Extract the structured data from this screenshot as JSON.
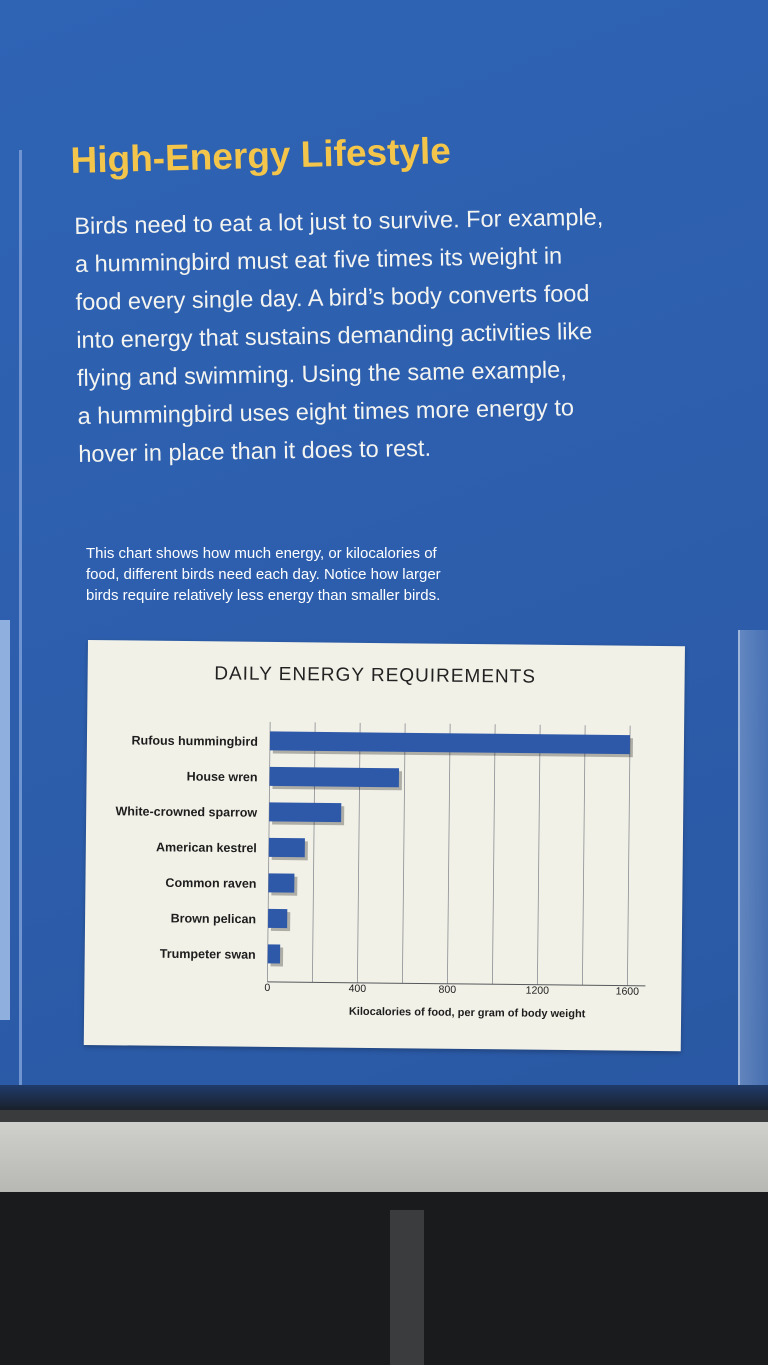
{
  "heading": "High-Energy Lifestyle",
  "intro_lines": [
    "Birds need to eat a lot just to survive. For example,",
    "a hummingbird must eat five times its weight in",
    "food every single day. A bird’s body converts food",
    "into energy that sustains demanding activities like",
    "flying and swimming. Using the same example,",
    "a hummingbird uses eight times more energy to",
    "hover in place than it does to rest."
  ],
  "caption_lines": [
    "This chart shows how much energy, or kilocalories of",
    "food, different birds need each day. Notice how larger",
    "birds require relatively less energy than smaller birds."
  ],
  "colors": {
    "panel": "#2d5fae",
    "heading": "#f3c54a",
    "bar": "#2e58a8",
    "card": "#f2f1e8"
  },
  "chart_data": {
    "type": "bar",
    "orientation": "horizontal",
    "title": "DAILY ENERGY REQUIREMENTS",
    "xlabel": "Kilocalories of food, per gram of body weight",
    "ylabel": "",
    "categories": [
      "Rufous hummingbird",
      "House wren",
      "White-crowned sparrow",
      "American kestrel",
      "Common raven",
      "Brown pelican",
      "Trumpeter swan"
    ],
    "values": [
      1600,
      575,
      320,
      160,
      115,
      85,
      55
    ],
    "xlim": [
      0,
      1600
    ],
    "xticks": [
      0,
      400,
      800,
      1200,
      1600
    ],
    "grid": true
  }
}
